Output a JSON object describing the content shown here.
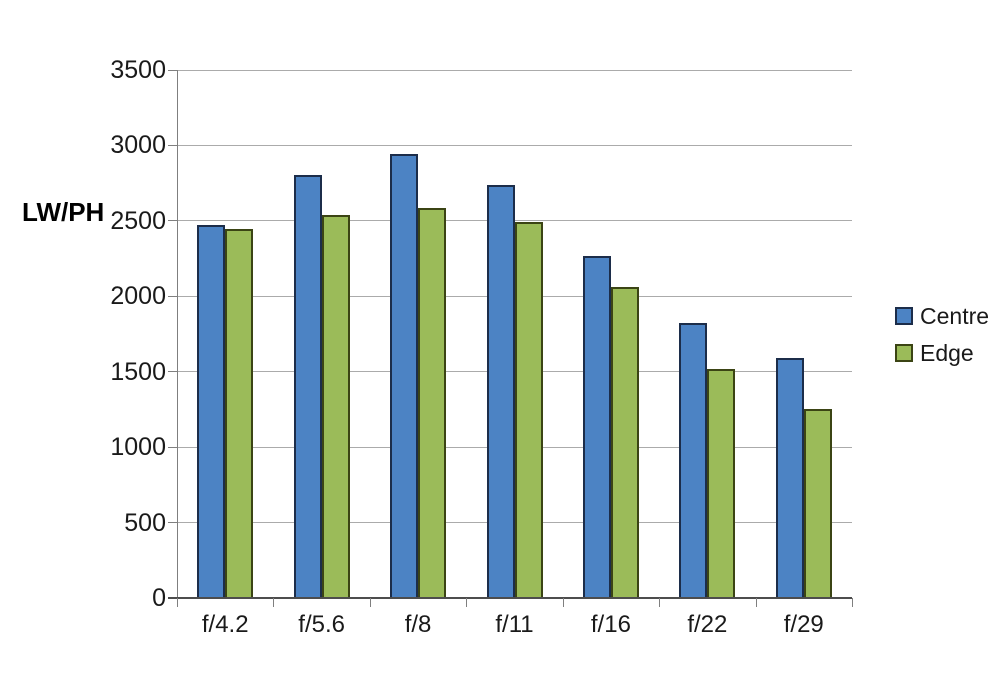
{
  "chart_data": {
    "type": "bar",
    "title": "",
    "xlabel": "",
    "ylabel": "LW/PH",
    "categories": [
      "f/4.2",
      "f/5.6",
      "f/8",
      "f/11",
      "f/16",
      "f/22",
      "f/29"
    ],
    "series": [
      {
        "name": "Centre",
        "fill": "#4C83C4",
        "border": "#1C2D4A",
        "values": [
          2470,
          2805,
          2940,
          2740,
          2265,
          1820,
          1590
        ]
      },
      {
        "name": "Edge",
        "fill": "#9BBB59",
        "border": "#3B4414",
        "values": [
          2445,
          2540,
          2585,
          2490,
          2060,
          1515,
          1255
        ]
      }
    ],
    "ylim": [
      0,
      3500
    ],
    "y_tick_step": 500,
    "y_ticks": [
      "0",
      "500",
      "1000",
      "1500",
      "2000",
      "2500",
      "3000",
      "3500"
    ],
    "grid": true,
    "legend_position": "right",
    "colors": {
      "gridline": "#ABABAB",
      "y_axis_line": "#7F7F7F",
      "x_axis_line": "#4D4D4D",
      "tick": "#7F7F7F",
      "text": "#1A1A1A",
      "background": "#FFFFFF"
    }
  }
}
